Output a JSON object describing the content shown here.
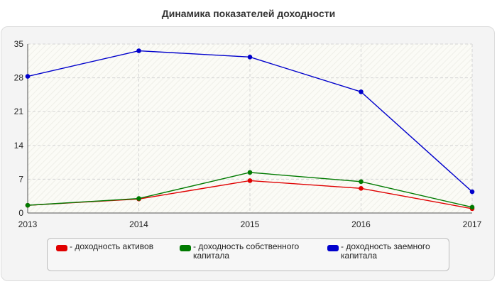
{
  "chart_data": {
    "type": "line",
    "title": "Динамика показателей доходности",
    "xlabel": "",
    "ylabel": "",
    "x": [
      "2013",
      "2014",
      "2015",
      "2016",
      "2017"
    ],
    "ylim": [
      0,
      35
    ],
    "yticks": [
      "0",
      "7",
      "14",
      "21",
      "28",
      "35"
    ],
    "grid": true,
    "legend_position": "bottom",
    "series": [
      {
        "name": "- доходность активов",
        "color": "#e00000",
        "values": [
          1.6,
          2.9,
          6.7,
          5.1,
          0.9
        ]
      },
      {
        "name": "- доходность собственного\nкапитала",
        "color": "#007a00",
        "values": [
          1.6,
          3.0,
          8.4,
          6.5,
          1.2
        ]
      },
      {
        "name": "- доходность заемного\nкапитала",
        "color": "#0000cc",
        "values": [
          28.3,
          33.6,
          32.3,
          25.1,
          4.4
        ]
      }
    ]
  }
}
